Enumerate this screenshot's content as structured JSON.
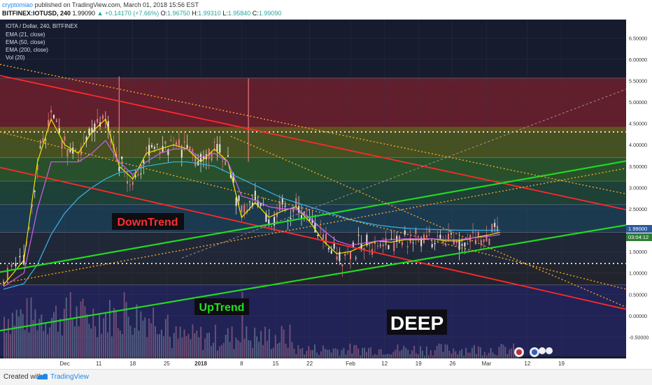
{
  "header": {
    "user": "cryptomiao",
    "published": "published on TradingView.com, March 01, 2018 15:56 EST",
    "symbol": "BITFINEX:IOTUSD, 240",
    "last": "1.99090",
    "change": "▲ +0.14170 (+7.66%)",
    "open_label": "O:",
    "open": "1.96750",
    "high_label": "H:",
    "high": "1.99310",
    "low_label": "L:",
    "low": "1.95840",
    "close_label": "C:",
    "close": "1.99090"
  },
  "legend": {
    "title": "IOTA / Dollar, 240, BITFINEX",
    "ema21": "EMA (21, close)",
    "ema50": "EMA (50, close)",
    "ema200": "EMA (200, close)",
    "vol": "Vol (20)"
  },
  "annotations": {
    "downtrend": "DownTrend",
    "uptrend": "UpTrend",
    "deep": "DEEP"
  },
  "price_label": {
    "price": "1.99000",
    "timer": "03:04:12"
  },
  "footer": {
    "created": "Created with",
    "brand": "TradingView"
  },
  "colors": {
    "downtrend_line": "#ff2a2a",
    "uptrend_line": "#22d822",
    "dotted_trend": "#f5a623",
    "ema21": "#f2e600",
    "ema50": "#d45cf0",
    "ema200": "#3ab4e8",
    "candle_up": "#f1e8e8",
    "candle_down": "#e37b7b",
    "background": "#161c2e"
  },
  "chart_data": {
    "type": "line",
    "title": "IOTA / Dollar, 240, BITFINEX",
    "ylim": [
      -1.0,
      6.75
    ],
    "y_ticks": [
      "6.50000",
      "6.00000",
      "5.50000",
      "5.00000",
      "4.50000",
      "4.00000",
      "3.50000",
      "3.00000",
      "2.50000",
      "2.00000",
      "1.50000",
      "1.00000",
      "0.50000",
      "0.00000",
      "-0.50000"
    ],
    "x_ticks": [
      "Dec",
      "11",
      "18",
      "25",
      "2018",
      "8",
      "15",
      "22",
      "Feb",
      "12",
      "19",
      "26",
      "Mar",
      "12",
      "19"
    ],
    "grid": true,
    "series": [
      {
        "name": "EMA (21, close)",
        "x": [
          0,
          3,
          5,
          7,
          9,
          11,
          13,
          15,
          17,
          19,
          21,
          23,
          25,
          27,
          29,
          31,
          33,
          35,
          37,
          39,
          41,
          43,
          45,
          47,
          49,
          51,
          53,
          55,
          57,
          59,
          61,
          63,
          65,
          67,
          69,
          71,
          73,
          75,
          77,
          79,
          81,
          83,
          85,
          87,
          89,
          91
        ],
        "values": [
          0.72,
          1.3,
          3.6,
          4.6,
          4.0,
          3.8,
          4.3,
          4.6,
          3.5,
          3.2,
          3.8,
          3.9,
          4.0,
          3.9,
          3.6,
          3.9,
          3.6,
          2.3,
          2.65,
          2.3,
          2.45,
          2.55,
          2.2,
          1.75,
          1.45,
          1.5,
          1.65,
          1.75,
          1.72,
          1.78,
          1.78,
          1.8,
          1.75,
          1.75,
          1.82,
          1.88,
          1.95,
          null,
          null,
          null,
          null,
          null,
          null,
          null,
          null,
          null
        ]
      },
      {
        "name": "EMA (50, close)",
        "x": [
          0,
          3,
          5,
          7,
          9,
          11,
          13,
          15,
          17,
          19,
          21,
          23,
          25,
          27,
          29,
          31,
          33,
          35,
          37,
          39,
          41,
          43,
          45,
          47,
          49,
          51,
          53,
          55,
          57,
          59,
          61,
          63,
          65,
          67,
          69,
          71,
          73,
          75,
          77,
          79,
          81,
          83,
          85,
          87,
          89,
          91
        ],
        "values": [
          0.68,
          1.0,
          2.5,
          3.6,
          3.6,
          3.6,
          3.8,
          4.1,
          3.6,
          3.3,
          3.6,
          3.8,
          3.9,
          3.9,
          3.7,
          3.8,
          3.6,
          2.8,
          2.7,
          2.55,
          2.5,
          2.5,
          2.3,
          2.0,
          1.75,
          1.65,
          1.7,
          1.75,
          1.78,
          1.8,
          1.8,
          1.8,
          1.78,
          1.78,
          1.82,
          1.85,
          1.9,
          null,
          null,
          null,
          null,
          null,
          null,
          null,
          null,
          null
        ]
      },
      {
        "name": "EMA (200, close)",
        "x": [
          0,
          3,
          5,
          7,
          9,
          11,
          13,
          15,
          17,
          19,
          21,
          23,
          25,
          27,
          29,
          31,
          33,
          35,
          37,
          39,
          41,
          43,
          45,
          47,
          49,
          51,
          53,
          55,
          57,
          59,
          61,
          63,
          65,
          67,
          69,
          71,
          73,
          75,
          77,
          79,
          81,
          83,
          85,
          87,
          89,
          91
        ],
        "values": [
          0.62,
          0.75,
          1.2,
          1.9,
          2.4,
          2.75,
          3.0,
          3.2,
          3.35,
          3.4,
          3.5,
          3.55,
          3.6,
          3.6,
          3.55,
          3.5,
          3.35,
          3.2,
          3.05,
          2.9,
          2.75,
          2.65,
          2.55,
          2.45,
          2.35,
          2.25,
          2.18,
          2.12,
          2.08,
          2.05,
          2.03,
          2.02,
          2.01,
          2.0,
          2.0,
          2.0,
          2.0,
          null,
          null,
          null,
          null,
          null,
          null,
          null,
          null,
          null
        ]
      }
    ]
  }
}
